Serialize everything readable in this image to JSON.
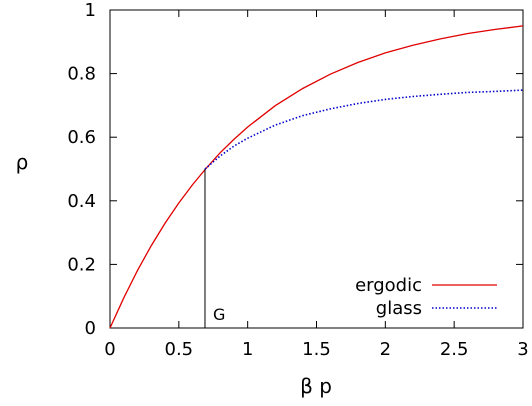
{
  "chart_data": {
    "type": "line",
    "xlabel": "β p",
    "ylabel": "ρ",
    "xlim": [
      0,
      3
    ],
    "ylim": [
      0,
      1
    ],
    "xticks": [
      "0",
      "0.5",
      "1",
      "1.5",
      "2",
      "2.5",
      "3"
    ],
    "yticks": [
      "0",
      "0.2",
      "0.4",
      "0.6",
      "0.8",
      "1"
    ],
    "grid": false,
    "legend_position": "bottom-right",
    "series": [
      {
        "name": "ergodic",
        "color": "#e00000",
        "style": "solid",
        "x": [
          0,
          0.1,
          0.2,
          0.3,
          0.4,
          0.5,
          0.6,
          0.7,
          0.8,
          0.9,
          1.0,
          1.2,
          1.4,
          1.6,
          1.8,
          2.0,
          2.2,
          2.4,
          2.6,
          2.8,
          3.0
        ],
        "y": [
          0,
          0.095,
          0.181,
          0.259,
          0.33,
          0.393,
          0.451,
          0.503,
          0.551,
          0.593,
          0.632,
          0.699,
          0.753,
          0.798,
          0.835,
          0.865,
          0.889,
          0.909,
          0.926,
          0.939,
          0.95
        ]
      },
      {
        "name": "glass",
        "color": "#0000cc",
        "style": "dotted",
        "x": [
          0.69,
          0.8,
          0.9,
          1.0,
          1.2,
          1.4,
          1.6,
          1.8,
          2.0,
          2.2,
          2.4,
          2.6,
          2.8,
          3.0
        ],
        "y": [
          0.5,
          0.541,
          0.572,
          0.597,
          0.638,
          0.668,
          0.689,
          0.706,
          0.719,
          0.728,
          0.735,
          0.741,
          0.744,
          0.748
        ]
      }
    ],
    "annotations": [
      {
        "text": "G",
        "x": 0.69,
        "y": 0.5
      }
    ]
  }
}
